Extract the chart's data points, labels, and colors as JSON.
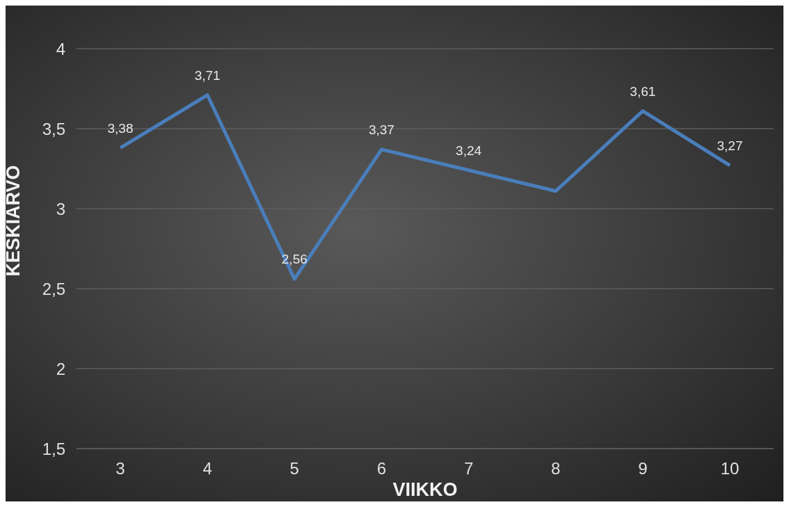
{
  "chart_data": {
    "type": "line",
    "xlabel": "VIIKKO",
    "ylabel": "KESKIARVO",
    "categories": [
      "3",
      "4",
      "5",
      "6",
      "7",
      "8",
      "9",
      "10"
    ],
    "series": [
      {
        "color": "#4a7ebb",
        "values": [
          3.38,
          3.71,
          2.56,
          3.37,
          3.24,
          3.11,
          3.61,
          3.27
        ],
        "value_labels": [
          "3,38",
          "3,71",
          "2,56",
          "3,37",
          "3,24",
          null,
          "3,61",
          "3,27"
        ]
      }
    ],
    "ylim": [
      1.5,
      4
    ],
    "yticks": [
      {
        "value": 1.5,
        "label": "1,5"
      },
      {
        "value": 2,
        "label": "2"
      },
      {
        "value": 2.5,
        "label": "2,5"
      },
      {
        "value": 3,
        "label": "3"
      },
      {
        "value": 3.5,
        "label": "3,5"
      },
      {
        "value": 4,
        "label": "4"
      }
    ],
    "grid": "y",
    "legend": false,
    "marker": "none",
    "line_style": "solid"
  }
}
